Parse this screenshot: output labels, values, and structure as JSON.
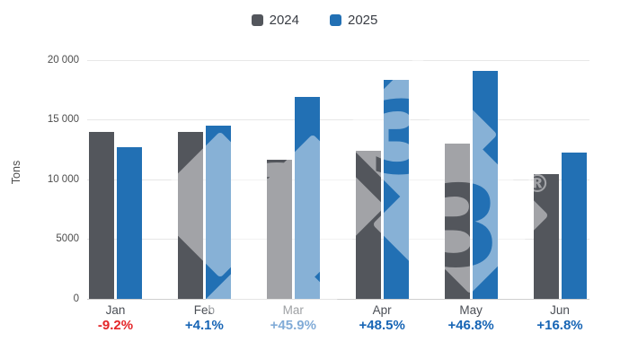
{
  "chart_data": {
    "type": "bar",
    "title": "",
    "ylabel": "Tons",
    "categories": [
      "Jan",
      "Feb",
      "Mar",
      "Apr",
      "May",
      "Jun"
    ],
    "series": [
      {
        "name": "2024",
        "color": "#53565C",
        "values": [
          13950,
          13950,
          11600,
          12350,
          13000,
          10450
        ]
      },
      {
        "name": "2025",
        "color": "#2270B4",
        "values": [
          12670,
          14520,
          16920,
          18340,
          19080,
          12210
        ]
      }
    ],
    "change_labels": {
      "values": [
        "-9.2%",
        "+4.1%",
        "+45.9%",
        "+48.5%",
        "+46.8%",
        "+16.8%"
      ],
      "negative_color": "#E42528",
      "positive_color": "#1765B5"
    },
    "y_axis": {
      "max": 20000,
      "ticks": [
        {
          "value": 0,
          "label": "0"
        },
        {
          "value": 5000,
          "label": "5000"
        },
        {
          "value": 10000,
          "label": "10 000"
        },
        {
          "value": 15000,
          "label": "15 000"
        },
        {
          "value": 20000,
          "label": "20 000"
        }
      ]
    },
    "legend": {
      "position": "top",
      "items": [
        {
          "label": "2024",
          "color": "#53565C"
        },
        {
          "label": "2025",
          "color": "#2270B4"
        }
      ]
    },
    "grid": "horizontal",
    "watermark": "diamond-3-logo with registered trademark symbol",
    "colors": {
      "grid": "#e7e7e7",
      "axis": "#cfcfcf",
      "tick_text": "#4d4d4d",
      "month_text": "#4b4f56"
    }
  }
}
